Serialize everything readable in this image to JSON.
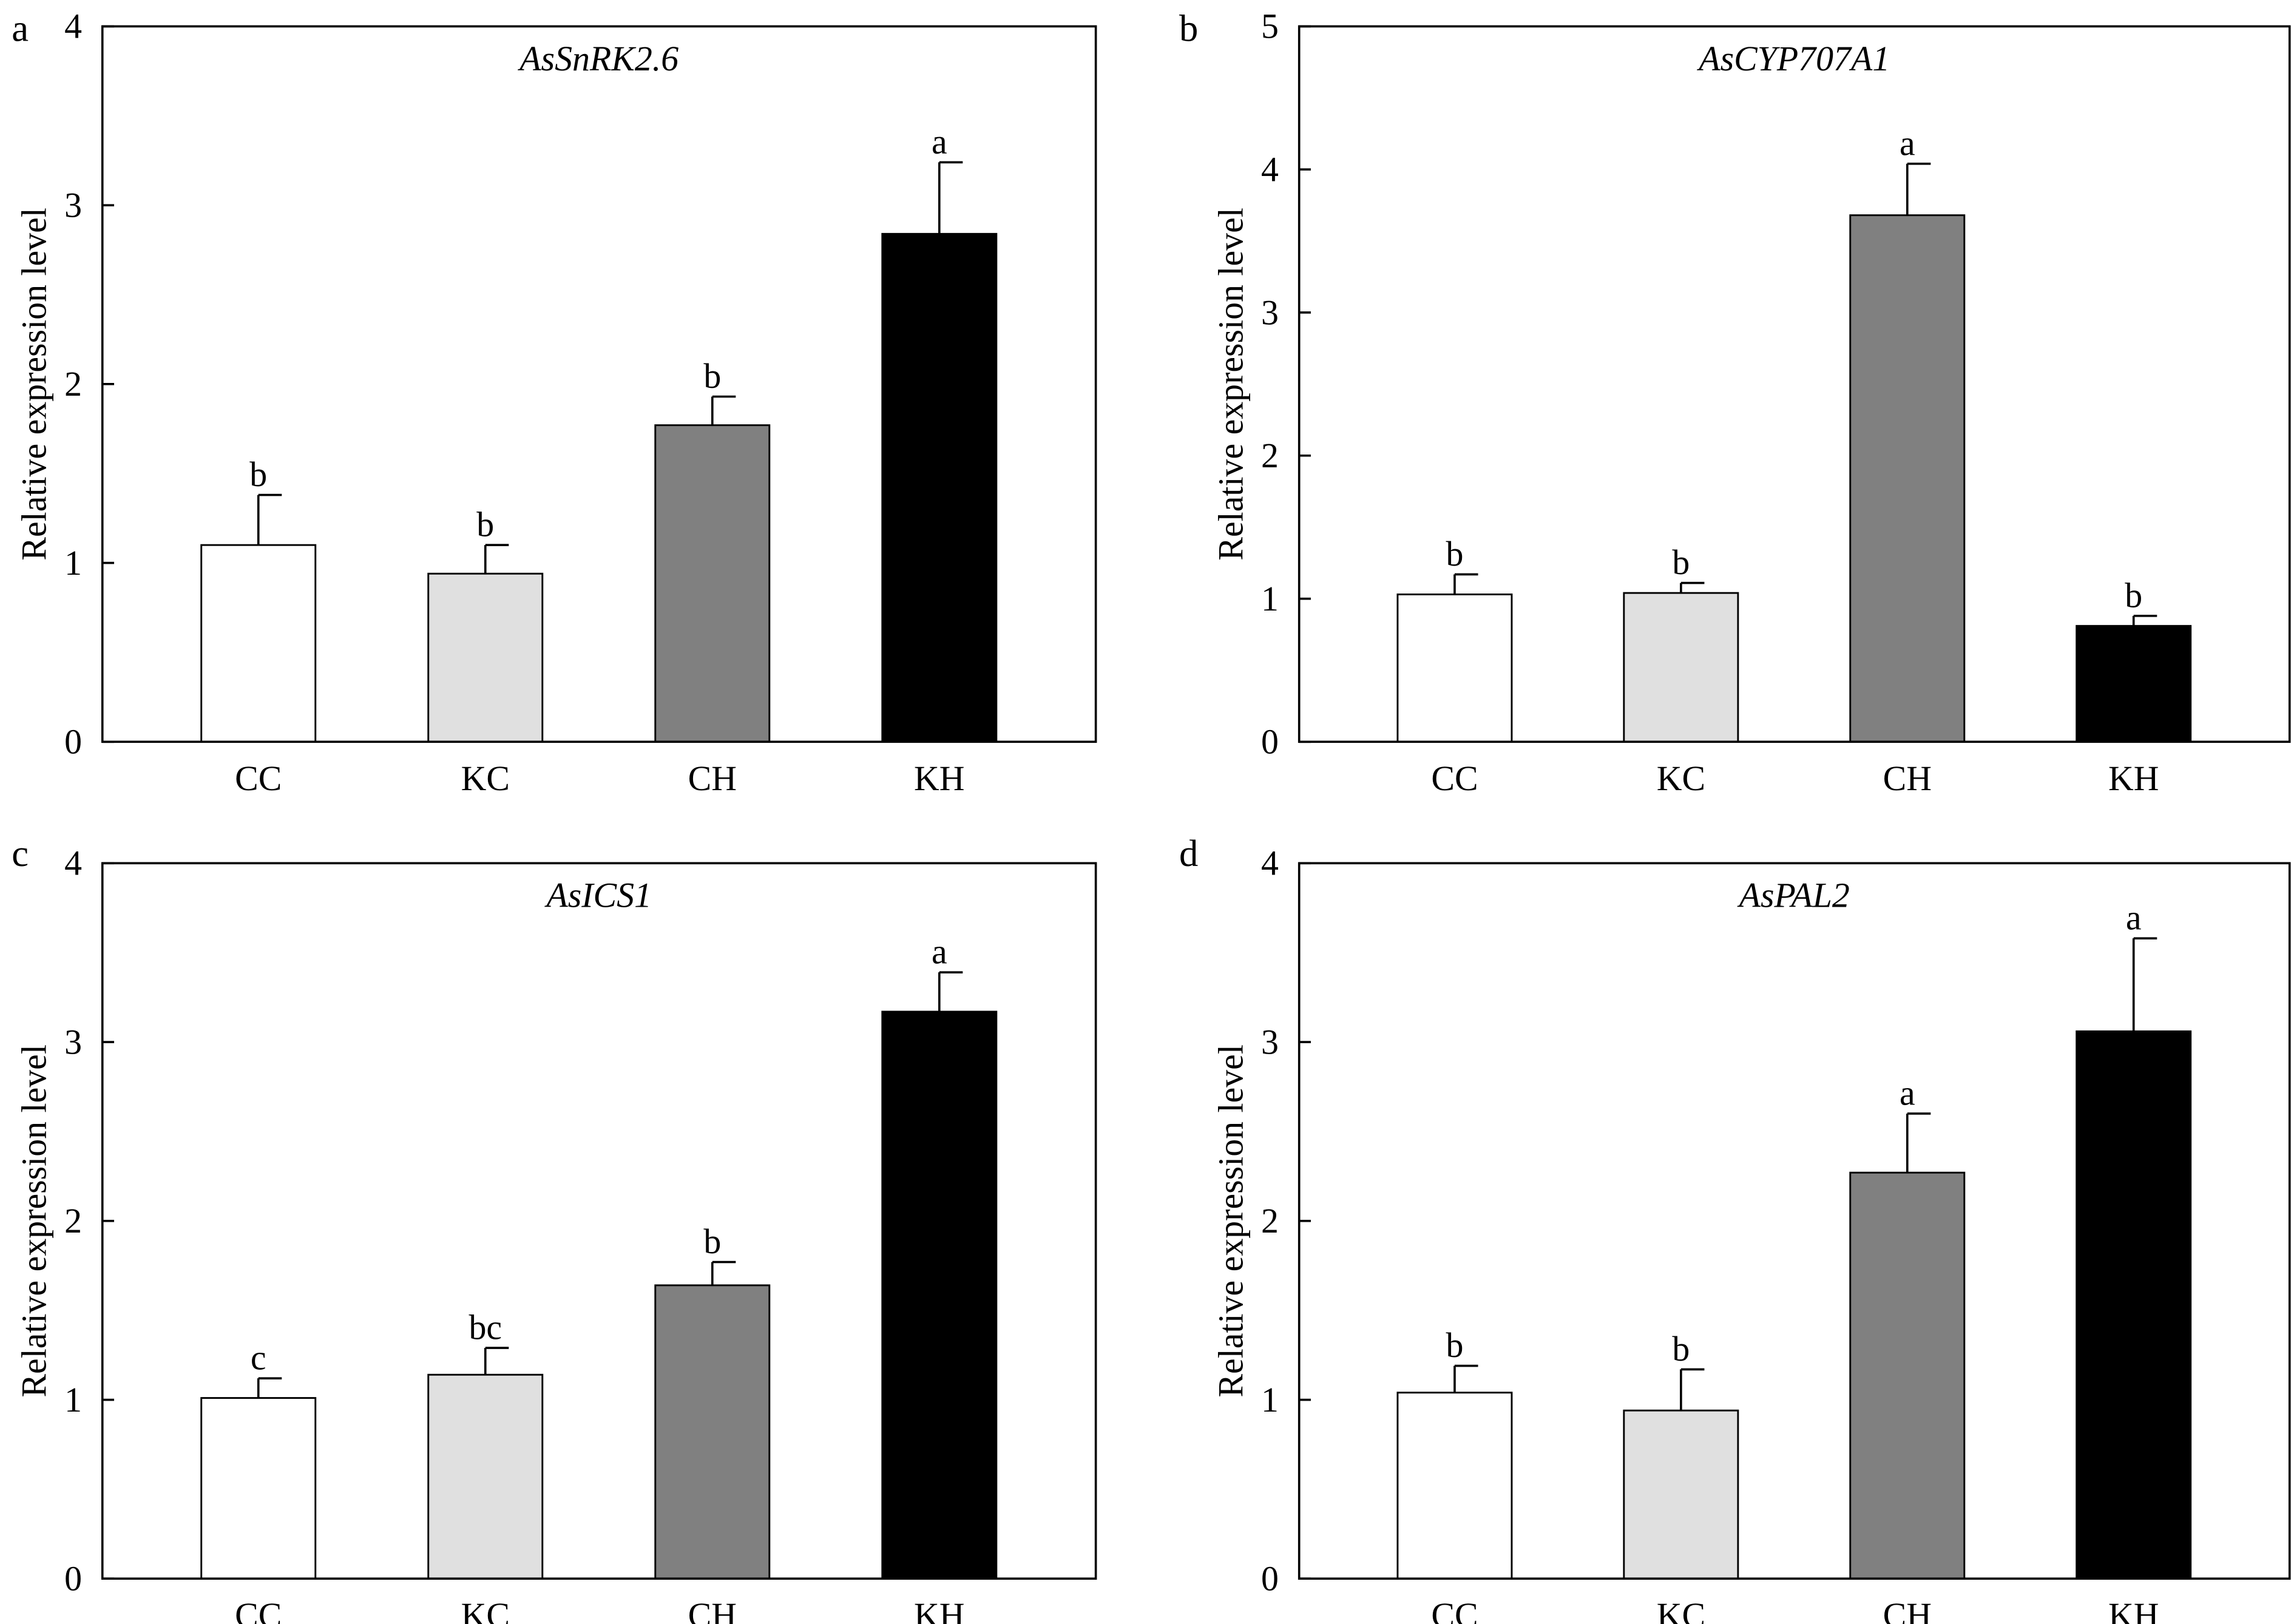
{
  "colors": {
    "CC": "#ffffff",
    "KC": "#e0e0e0",
    "CH": "#808080",
    "KH": "#000000"
  },
  "chart_data": [
    {
      "type": "bar",
      "panel": "a",
      "title": "AsSnRK2.6",
      "ylabel": "Relative expression level",
      "ylim": [
        0,
        4
      ],
      "yticks": [
        0,
        1,
        2,
        3,
        4
      ],
      "categories": [
        "CC",
        "KC",
        "CH",
        "KH"
      ],
      "values": [
        1.1,
        0.94,
        1.77,
        2.84
      ],
      "error_upper": [
        1.38,
        1.1,
        1.93,
        3.24
      ],
      "letters": [
        "b",
        "b",
        "b",
        "a"
      ]
    },
    {
      "type": "bar",
      "panel": "b",
      "title": "AsCYP707A1",
      "ylabel": "Relative expression level",
      "ylim": [
        0,
        5
      ],
      "yticks": [
        0,
        1,
        2,
        3,
        4,
        5
      ],
      "categories": [
        "CC",
        "KC",
        "CH",
        "KH"
      ],
      "values": [
        1.03,
        1.04,
        3.68,
        0.81
      ],
      "error_upper": [
        1.17,
        1.11,
        4.04,
        0.88
      ],
      "letters": [
        "b",
        "b",
        "a",
        "b"
      ]
    },
    {
      "type": "bar",
      "panel": "c",
      "title": "AsICS1",
      "ylabel": "Relative expression level",
      "ylim": [
        0,
        4
      ],
      "yticks": [
        0,
        1,
        2,
        3,
        4
      ],
      "categories": [
        "CC",
        "KC",
        "CH",
        "KH"
      ],
      "values": [
        1.01,
        1.14,
        1.64,
        3.17
      ],
      "error_upper": [
        1.12,
        1.29,
        1.77,
        3.39
      ],
      "letters": [
        "c",
        "bc",
        "b",
        "a"
      ]
    },
    {
      "type": "bar",
      "panel": "d",
      "title": "AsPAL2",
      "ylabel": "Relative expression level",
      "ylim": [
        0,
        4
      ],
      "yticks": [
        0,
        1,
        2,
        3,
        4
      ],
      "categories": [
        "CC",
        "KC",
        "CH",
        "KH"
      ],
      "values": [
        1.04,
        0.94,
        2.27,
        3.06
      ],
      "error_upper": [
        1.19,
        1.17,
        2.6,
        3.58
      ],
      "letters": [
        "b",
        "b",
        "a",
        "a"
      ]
    }
  ]
}
